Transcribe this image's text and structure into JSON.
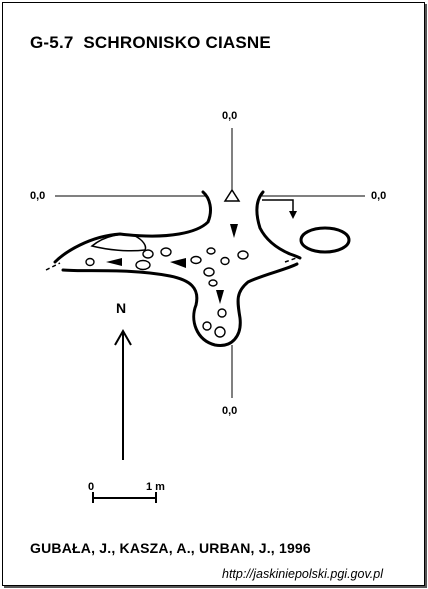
{
  "title": "G-5.7  SCHRONISKO CIASNE",
  "grid_labels": {
    "top": "0,0",
    "left": "0,0",
    "right": "0,0",
    "bottom": "0,0"
  },
  "north_label": "N",
  "scale": {
    "start": "0",
    "end": "1 m"
  },
  "authors": "GUBAŁA, J., KASZA, A., URBAN, J., 1996",
  "url": "http://jaskiniepolski.pgi.gov.pl"
}
